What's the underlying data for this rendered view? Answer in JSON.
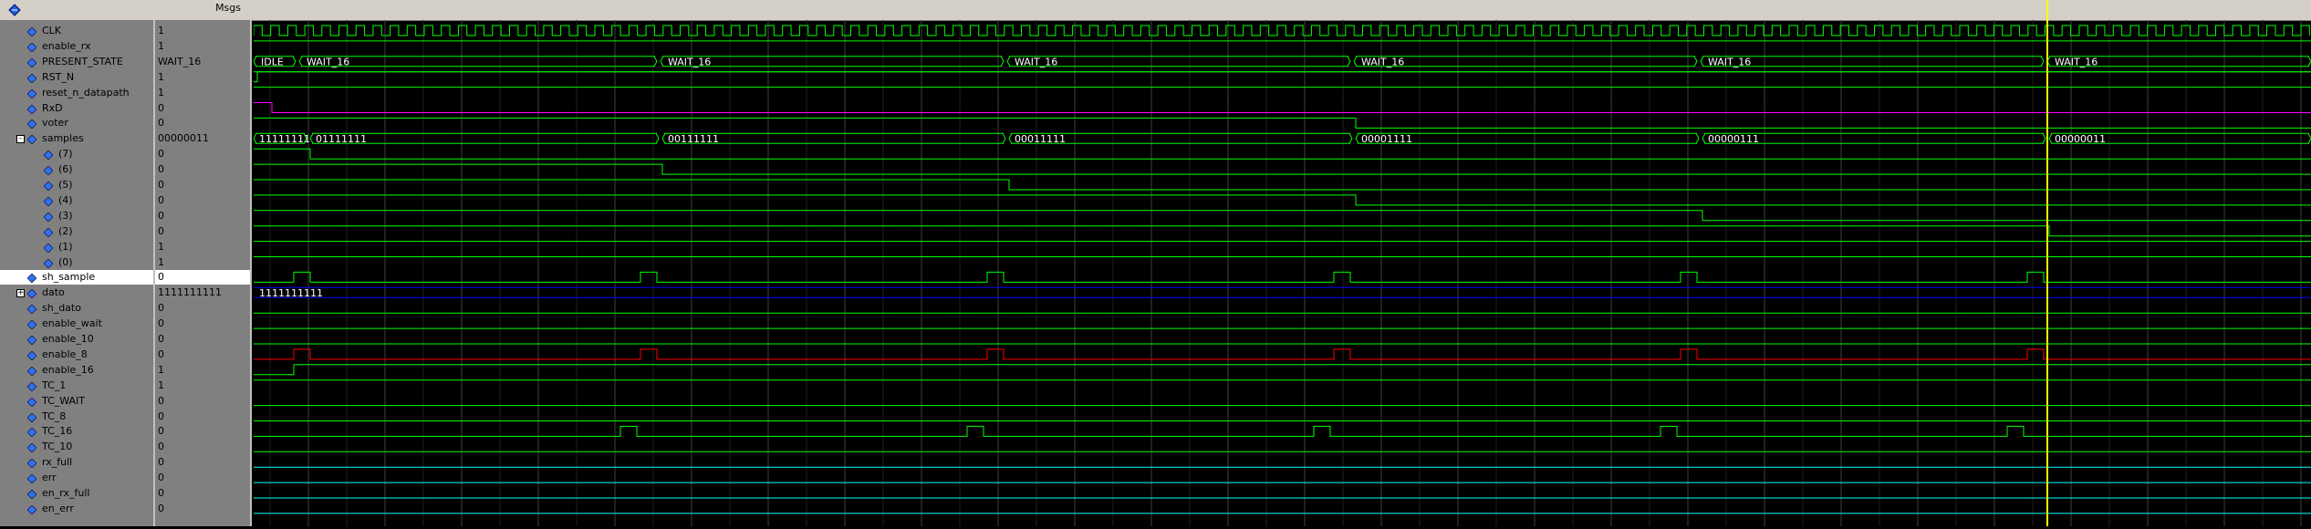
{
  "toolbar": {
    "msgs_label": "Msgs"
  },
  "colors": {
    "bit_wave": "#00ff00",
    "bus_wave": "#00ff00",
    "rxd_wave": "#ff00ff",
    "dato_wave": "#0000ff",
    "enable8_wave": "#ff0000",
    "flat_wave": "#00ffff",
    "grid": "#404040",
    "cursor": "#ffff00",
    "bus_text": "#ffffff"
  },
  "signals": [
    {
      "name": "CLK",
      "value": "1",
      "indent": 1,
      "kind": "bit"
    },
    {
      "name": "enable_rx",
      "value": "1",
      "indent": 1,
      "kind": "bit"
    },
    {
      "name": "PRESENT_STATE",
      "value": "WAIT_16",
      "indent": 1,
      "kind": "bus"
    },
    {
      "name": "RST_N",
      "value": "1",
      "indent": 1,
      "kind": "bit"
    },
    {
      "name": "reset_n_datapath",
      "value": "1",
      "indent": 1,
      "kind": "bit"
    },
    {
      "name": "RxD",
      "value": "0",
      "indent": 1,
      "kind": "bit"
    },
    {
      "name": "voter",
      "value": "0",
      "indent": 1,
      "kind": "bit"
    },
    {
      "name": "samples",
      "value": "00000011",
      "indent": 1,
      "kind": "bus",
      "expanded": true
    },
    {
      "name": "(7)",
      "value": "0",
      "indent": 2,
      "kind": "bit"
    },
    {
      "name": "(6)",
      "value": "0",
      "indent": 2,
      "kind": "bit"
    },
    {
      "name": "(5)",
      "value": "0",
      "indent": 2,
      "kind": "bit"
    },
    {
      "name": "(4)",
      "value": "0",
      "indent": 2,
      "kind": "bit"
    },
    {
      "name": "(3)",
      "value": "0",
      "indent": 2,
      "kind": "bit"
    },
    {
      "name": "(2)",
      "value": "0",
      "indent": 2,
      "kind": "bit"
    },
    {
      "name": "(1)",
      "value": "1",
      "indent": 2,
      "kind": "bit"
    },
    {
      "name": "(0)",
      "value": "1",
      "indent": 2,
      "kind": "bit"
    },
    {
      "name": "sh_sample",
      "value": "0",
      "indent": 1,
      "kind": "bit",
      "selected": true
    },
    {
      "name": "dato",
      "value": "1111111111",
      "indent": 1,
      "kind": "bus",
      "collapsed": true
    },
    {
      "name": "sh_dato",
      "value": "0",
      "indent": 1,
      "kind": "bit"
    },
    {
      "name": "enable_wait",
      "value": "0",
      "indent": 1,
      "kind": "bit"
    },
    {
      "name": "enable_10",
      "value": "0",
      "indent": 1,
      "kind": "bit"
    },
    {
      "name": "enable_8",
      "value": "0",
      "indent": 1,
      "kind": "bit"
    },
    {
      "name": "enable_16",
      "value": "1",
      "indent": 1,
      "kind": "bit"
    },
    {
      "name": "TC_1",
      "value": "1",
      "indent": 1,
      "kind": "bit"
    },
    {
      "name": "TC_WAIT",
      "value": "0",
      "indent": 1,
      "kind": "bit"
    },
    {
      "name": "TC_8",
      "value": "0",
      "indent": 1,
      "kind": "bit"
    },
    {
      "name": "TC_16",
      "value": "0",
      "indent": 1,
      "kind": "bit"
    },
    {
      "name": "TC_10",
      "value": "0",
      "indent": 1,
      "kind": "bit"
    },
    {
      "name": "rx_full",
      "value": "0",
      "indent": 1,
      "kind": "bit"
    },
    {
      "name": "err",
      "value": "0",
      "indent": 1,
      "kind": "bit"
    },
    {
      "name": "en_rx_full",
      "value": "0",
      "indent": 1,
      "kind": "bit"
    },
    {
      "name": "en_err",
      "value": "0",
      "indent": 1,
      "kind": "bit"
    }
  ],
  "bus_labels": {
    "present_state": [
      "IDLE",
      "WAIT_16",
      "WAIT_16",
      "WAIT_16",
      "WAIT_16",
      "WAIT_16",
      "WAIT_16"
    ],
    "samples": [
      "11111111",
      "01111111",
      "00111111",
      "00011111",
      "00001111",
      "00000111",
      "00000011"
    ],
    "dato": [
      "1111111111"
    ]
  }
}
